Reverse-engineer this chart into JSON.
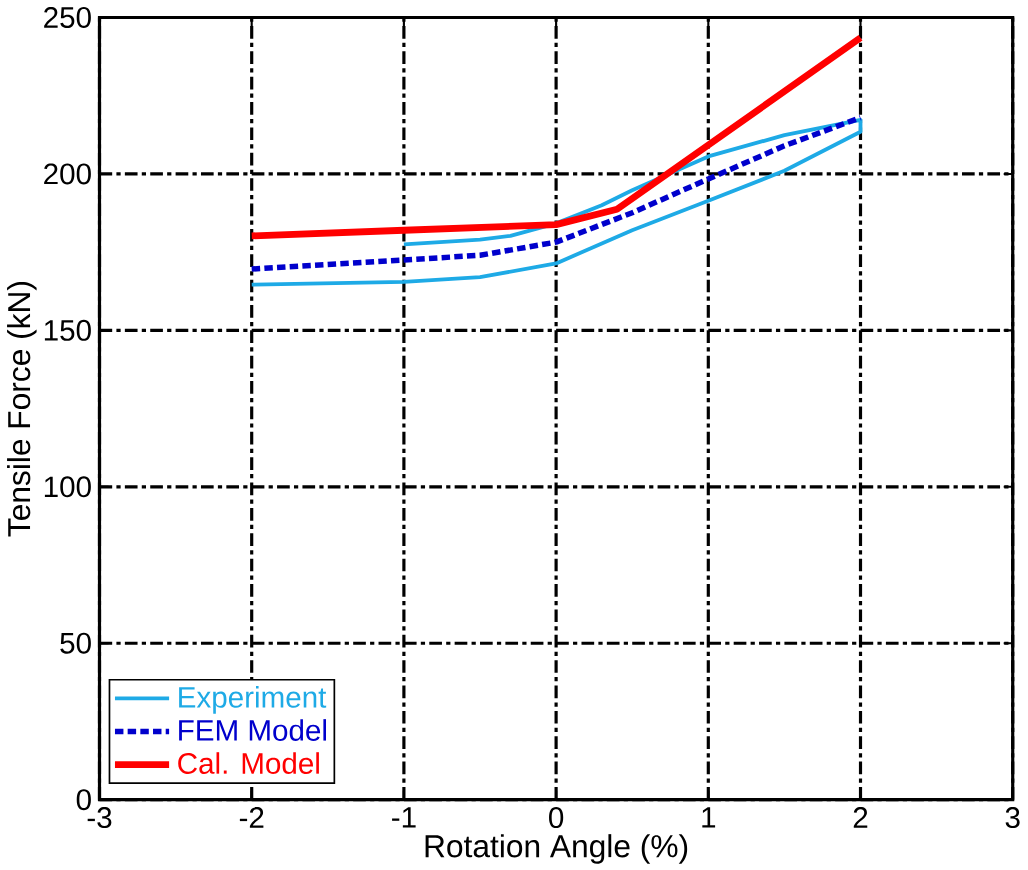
{
  "chart_data": {
    "type": "line",
    "xlabel": "Rotation Angle (%)",
    "ylabel": "Tensile Force (kN)",
    "xlim": [
      -3,
      3
    ],
    "ylim": [
      0,
      250
    ],
    "xticks": [
      -3,
      -2,
      -1,
      0,
      1,
      2,
      3
    ],
    "yticks": [
      0,
      50,
      100,
      150,
      200,
      250
    ],
    "grid": true,
    "legend": "bottom left",
    "series": [
      {
        "name": "Experiment",
        "color": "#1eaae6",
        "line_style": "solid",
        "x": [
          -2,
          -1,
          -0.5,
          0,
          0.5,
          1,
          1.5,
          2,
          2,
          1.5,
          1,
          0.5,
          0.3,
          0,
          -0.3,
          -0.5,
          -1
        ],
        "values": [
          164.6,
          165.5,
          167,
          171.4,
          182,
          191.4,
          201,
          213.5,
          217.3,
          212.4,
          205.6,
          194.8,
          190,
          184.2,
          180.2,
          179,
          177.5
        ]
      },
      {
        "name": "FEM Model",
        "color": "#0000cc",
        "line_style": "dashed",
        "x": [
          -2,
          -1,
          -0.5,
          0,
          0.5,
          1,
          1.5,
          2
        ],
        "values": [
          169.6,
          172.5,
          174,
          178.2,
          187.6,
          198.4,
          209,
          218
        ]
      },
      {
        "name": "Cal. Model",
        "color": "#ff0000",
        "line_style": "solid",
        "x": [
          -2,
          -1,
          0,
          0.4,
          2
        ],
        "values": [
          180.2,
          182,
          183.8,
          188.7,
          243.5
        ]
      }
    ]
  }
}
